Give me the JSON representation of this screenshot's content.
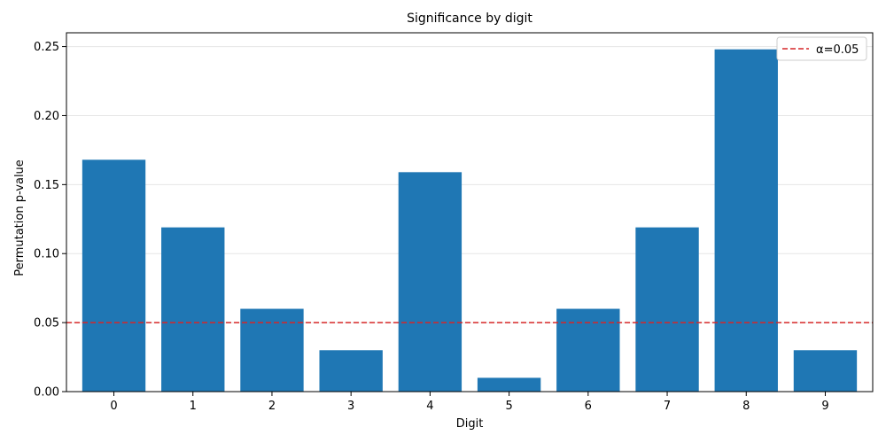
{
  "chart_data": {
    "type": "bar",
    "title": "Significance by digit",
    "xlabel": "Digit",
    "ylabel": "Permutation p-value",
    "categories": [
      "0",
      "1",
      "2",
      "3",
      "4",
      "5",
      "6",
      "7",
      "8",
      "9"
    ],
    "values": [
      0.168,
      0.119,
      0.06,
      0.03,
      0.159,
      0.01,
      0.06,
      0.119,
      0.248,
      0.03
    ],
    "ylim": [
      0,
      0.26
    ],
    "yticks": [
      0.0,
      0.05,
      0.1,
      0.15,
      0.2,
      0.25
    ],
    "ytick_labels": [
      "0.00",
      "0.05",
      "0.10",
      "0.15",
      "0.20",
      "0.25"
    ],
    "grid": "horizontal",
    "bar_color": "#1f77b4",
    "threshold": {
      "value": 0.05,
      "label": "α=0.05",
      "color": "#d62728",
      "style": "dashed"
    },
    "legend": {
      "position": "top-right",
      "entries": [
        "α=0.05"
      ]
    }
  }
}
